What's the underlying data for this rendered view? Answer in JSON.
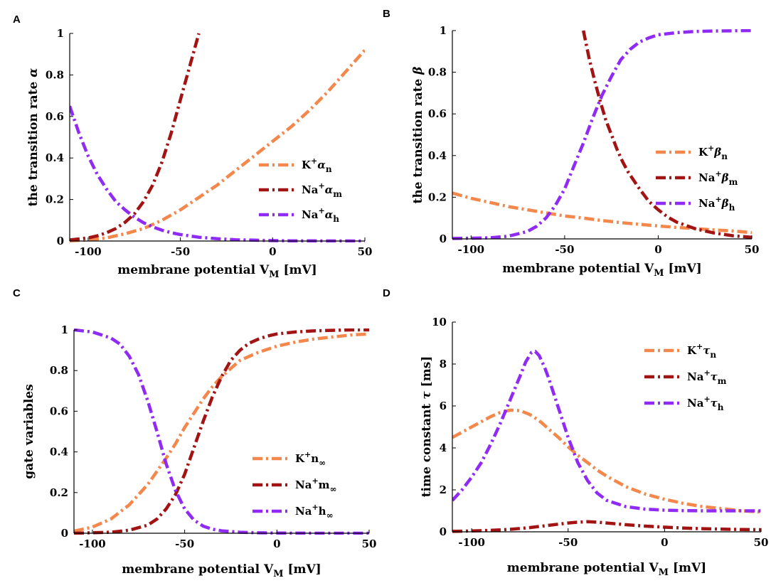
{
  "colors": {
    "orange": "#F4874B",
    "darkred": "#A21414",
    "purple": "#8F2BF5"
  },
  "chart_data": [
    {
      "panel": "A",
      "type": "line",
      "xlabel": {
        "main": "membrane potential V",
        "sub": "M",
        "unit": " [mV]"
      },
      "ylabel": {
        "main": "the transition rate ",
        "greek": "α"
      },
      "xlim": [
        -110,
        50
      ],
      "ylim": [
        0,
        1
      ],
      "xticks": [
        -100,
        -50,
        0,
        50
      ],
      "yticks": [
        0,
        0.2,
        0.4,
        0.6,
        0.8,
        1
      ],
      "ytick_labels": [
        "0",
        "0.2",
        "0.4",
        "0.6",
        "0.8",
        "1"
      ],
      "legend_position": "center-right",
      "series": [
        {
          "name": "K+ αn",
          "ion": "K",
          "charge": "+",
          "greek": "α",
          "sub": "n",
          "color": "orange",
          "x": [
            -110,
            -100,
            -90,
            -80,
            -70,
            -60,
            -50,
            -40,
            -30,
            -20,
            -10,
            0,
            10,
            20,
            30,
            40,
            50
          ],
          "y": [
            0.001,
            0.005,
            0.015,
            0.035,
            0.06,
            0.1,
            0.15,
            0.21,
            0.27,
            0.34,
            0.41,
            0.48,
            0.55,
            0.63,
            0.72,
            0.82,
            0.92
          ]
        },
        {
          "name": "Na+ αm",
          "ion": "Na",
          "charge": "+",
          "greek": "α",
          "sub": "m",
          "color": "darkred",
          "x": [
            -110,
            -100,
            -95,
            -90,
            -85,
            -80,
            -75,
            -70,
            -65,
            -60,
            -55,
            -50,
            -45,
            -40
          ],
          "y": [
            0.005,
            0.015,
            0.025,
            0.04,
            0.06,
            0.09,
            0.13,
            0.19,
            0.27,
            0.38,
            0.52,
            0.68,
            0.84,
            1.0
          ]
        },
        {
          "name": "Na+ αh",
          "ion": "Na",
          "charge": "+",
          "greek": "α",
          "sub": "h",
          "color": "purple",
          "x": [
            -110,
            -105,
            -100,
            -95,
            -90,
            -85,
            -80,
            -75,
            -70,
            -65,
            -60,
            -55,
            -50,
            -40,
            -30,
            -20,
            -10,
            0,
            10,
            20,
            30,
            40,
            50
          ],
          "y": [
            0.65,
            0.52,
            0.41,
            0.32,
            0.25,
            0.19,
            0.15,
            0.115,
            0.088,
            0.068,
            0.052,
            0.04,
            0.031,
            0.018,
            0.011,
            0.006,
            0.004,
            0.002,
            0.001,
            0.001,
            0.0005,
            0.0002,
            0.0001
          ]
        }
      ]
    },
    {
      "panel": "B",
      "type": "line",
      "xlabel": {
        "main": "membrane potential V",
        "sub": "M",
        "unit": " [mV]"
      },
      "ylabel": {
        "main": "the transition rate ",
        "greek": "β"
      },
      "xlim": [
        -110,
        50
      ],
      "ylim": [
        0,
        1
      ],
      "xticks": [
        -100,
        -50,
        0,
        50
      ],
      "yticks": [
        0,
        0.2,
        0.4,
        0.6,
        0.8,
        1
      ],
      "ytick_labels": [
        "0",
        "0.2",
        "0.4",
        "0.6",
        "0.8",
        "1"
      ],
      "legend_position": "center-right",
      "series": [
        {
          "name": "K+ βn",
          "ion": "K",
          "charge": "+",
          "greek": "β",
          "sub": "n",
          "color": "orange",
          "x": [
            -110,
            -100,
            -90,
            -80,
            -70,
            -60,
            -50,
            -40,
            -30,
            -20,
            -10,
            0,
            10,
            20,
            30,
            40,
            50
          ],
          "y": [
            0.22,
            0.195,
            0.175,
            0.155,
            0.14,
            0.125,
            0.11,
            0.1,
            0.088,
            0.078,
            0.07,
            0.062,
            0.055,
            0.049,
            0.043,
            0.038,
            0.03
          ]
        },
        {
          "name": "Na+ βm",
          "ion": "Na",
          "charge": "+",
          "greek": "β",
          "sub": "m",
          "color": "darkred",
          "x": [
            -40,
            -37,
            -34,
            -31,
            -28,
            -25,
            -22,
            -19,
            -16,
            -13,
            -10,
            -5,
            0,
            5,
            10,
            20,
            30,
            40,
            50
          ],
          "y": [
            1.0,
            0.87,
            0.76,
            0.66,
            0.57,
            0.5,
            0.43,
            0.37,
            0.32,
            0.28,
            0.24,
            0.18,
            0.14,
            0.105,
            0.08,
            0.048,
            0.028,
            0.015,
            0.008
          ]
        },
        {
          "name": "Na+ βh",
          "ion": "Na",
          "charge": "+",
          "greek": "β",
          "sub": "h",
          "color": "purple",
          "x": [
            -110,
            -90,
            -80,
            -70,
            -65,
            -60,
            -55,
            -50,
            -45,
            -40,
            -35,
            -30,
            -25,
            -20,
            -15,
            -10,
            -5,
            0,
            10,
            20,
            30,
            50
          ],
          "y": [
            0.002,
            0.005,
            0.013,
            0.035,
            0.06,
            0.1,
            0.16,
            0.24,
            0.35,
            0.46,
            0.58,
            0.69,
            0.78,
            0.86,
            0.91,
            0.945,
            0.965,
            0.98,
            0.99,
            0.996,
            0.998,
            1.0
          ]
        }
      ]
    },
    {
      "panel": "C",
      "type": "line",
      "xlabel": {
        "main": "membrane potential V",
        "sub": "M",
        "unit": " [mV]"
      },
      "ylabel": {
        "main": "gate variables",
        "greek": ""
      },
      "xlim": [
        -110,
        50
      ],
      "ylim": [
        0,
        1
      ],
      "xticks": [
        -100,
        -50,
        0,
        50
      ],
      "yticks": [
        0,
        0.2,
        0.4,
        0.6,
        0.8,
        1
      ],
      "ytick_labels": [
        "0",
        "0.2",
        "0.4",
        "0.6",
        "0.8",
        "1"
      ],
      "legend_position": "bottom-right",
      "series": [
        {
          "name": "K+ n∞",
          "ion": "K",
          "charge": "+",
          "greek": "n",
          "sub": "∞",
          "color": "orange",
          "x": [
            -110,
            -100,
            -90,
            -80,
            -70,
            -60,
            -55,
            -50,
            -45,
            -40,
            -35,
            -30,
            -25,
            -20,
            -10,
            0,
            10,
            20,
            30,
            40,
            50
          ],
          "y": [
            0.01,
            0.03,
            0.07,
            0.14,
            0.24,
            0.37,
            0.44,
            0.52,
            0.59,
            0.66,
            0.72,
            0.77,
            0.81,
            0.85,
            0.89,
            0.92,
            0.94,
            0.955,
            0.965,
            0.975,
            0.98
          ]
        },
        {
          "name": "Na+ m∞",
          "ion": "Na",
          "charge": "+",
          "greek": "m",
          "sub": "∞",
          "color": "darkred",
          "x": [
            -110,
            -90,
            -80,
            -70,
            -65,
            -60,
            -55,
            -50,
            -45,
            -40,
            -35,
            -30,
            -25,
            -20,
            -15,
            -10,
            -5,
            0,
            10,
            20,
            30,
            40,
            50
          ],
          "y": [
            0.0,
            0.005,
            0.015,
            0.04,
            0.07,
            0.12,
            0.19,
            0.29,
            0.42,
            0.55,
            0.67,
            0.77,
            0.85,
            0.9,
            0.935,
            0.955,
            0.97,
            0.98,
            0.99,
            0.995,
            0.998,
            1.0,
            1.0
          ]
        },
        {
          "name": "Na+ h∞",
          "ion": "Na",
          "charge": "+",
          "greek": "h",
          "sub": "∞",
          "color": "purple",
          "x": [
            -110,
            -100,
            -90,
            -85,
            -80,
            -75,
            -70,
            -65,
            -60,
            -55,
            -50,
            -45,
            -40,
            -35,
            -30,
            -20,
            -10,
            0,
            10,
            30,
            50
          ],
          "y": [
            1.0,
            0.99,
            0.96,
            0.93,
            0.87,
            0.78,
            0.65,
            0.5,
            0.34,
            0.21,
            0.12,
            0.065,
            0.035,
            0.02,
            0.012,
            0.005,
            0.002,
            0.001,
            0.0005,
            0.0001,
            0.0
          ]
        }
      ]
    },
    {
      "panel": "D",
      "type": "line",
      "xlabel": {
        "main": "membrane potential V",
        "sub": "M",
        "unit": " [mV]"
      },
      "ylabel": {
        "main": "time constant ",
        "greek": "τ",
        "unit": " [ms]"
      },
      "xlim": [
        -110,
        50
      ],
      "ylim": [
        0,
        10
      ],
      "xticks": [
        -100,
        -50,
        0,
        50
      ],
      "yticks": [
        0,
        2,
        4,
        6,
        8,
        10
      ],
      "ytick_labels": [
        "0",
        "2",
        "4",
        "6",
        "8",
        "10"
      ],
      "legend_position": "top-right",
      "series": [
        {
          "name": "K+ τn",
          "ion": "K",
          "charge": "+",
          "greek": "τ",
          "sub": "n",
          "color": "orange",
          "x": [
            -110,
            -100,
            -90,
            -85,
            -80,
            -75,
            -70,
            -65,
            -60,
            -55,
            -50,
            -45,
            -40,
            -35,
            -30,
            -20,
            -10,
            0,
            10,
            20,
            30,
            40,
            50
          ],
          "y": [
            4.5,
            5.0,
            5.5,
            5.7,
            5.8,
            5.78,
            5.6,
            5.3,
            4.9,
            4.5,
            4.05,
            3.65,
            3.3,
            2.95,
            2.65,
            2.15,
            1.8,
            1.55,
            1.35,
            1.2,
            1.1,
            1.0,
            0.95
          ]
        },
        {
          "name": "Na+ τm",
          "ion": "Na",
          "charge": "+",
          "greek": "τ",
          "sub": "m",
          "color": "darkred",
          "x": [
            -110,
            -100,
            -90,
            -80,
            -70,
            -60,
            -50,
            -45,
            -40,
            -35,
            -30,
            -20,
            -10,
            0,
            10,
            20,
            30,
            40,
            50
          ],
          "y": [
            0.02,
            0.04,
            0.07,
            0.12,
            0.2,
            0.31,
            0.42,
            0.46,
            0.48,
            0.46,
            0.42,
            0.34,
            0.27,
            0.22,
            0.18,
            0.15,
            0.13,
            0.11,
            0.1
          ]
        },
        {
          "name": "Na+ τh",
          "ion": "Na",
          "charge": "+",
          "greek": "τ",
          "sub": "h",
          "color": "purple",
          "x": [
            -110,
            -105,
            -100,
            -95,
            -90,
            -85,
            -80,
            -75,
            -72,
            -69,
            -67,
            -65,
            -62,
            -60,
            -55,
            -50,
            -45,
            -40,
            -35,
            -30,
            -20,
            -10,
            0,
            10,
            20,
            30,
            40,
            50
          ],
          "y": [
            1.5,
            2.0,
            2.6,
            3.3,
            4.2,
            5.2,
            6.3,
            7.4,
            8.1,
            8.55,
            8.6,
            8.4,
            7.8,
            7.3,
            5.9,
            4.5,
            3.3,
            2.45,
            1.85,
            1.5,
            1.2,
            1.08,
            1.03,
            1.01,
            1.0,
            1.0,
            1.0,
            1.0
          ]
        }
      ]
    }
  ]
}
